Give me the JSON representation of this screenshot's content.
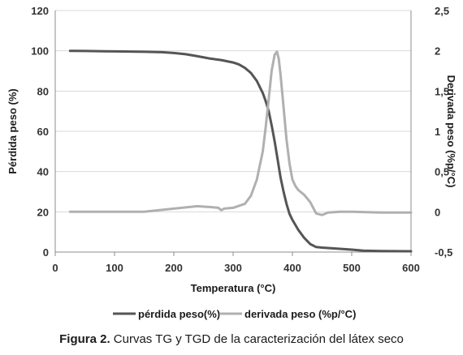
{
  "chart_data": {
    "type": "line",
    "xlabel": "Temperatura (°C)",
    "ylabel_left": "Pérdida peso (%)",
    "ylabel_right": "Derivada peso (%p/°C)",
    "xlim": [
      0,
      600
    ],
    "ylim_left": [
      0,
      120
    ],
    "ylim_right": [
      -0.5,
      2.5
    ],
    "xticks": [
      "0",
      "100",
      "200",
      "300",
      "400",
      "500",
      "600"
    ],
    "yticks_left": [
      "0",
      "20",
      "40",
      "60",
      "80",
      "100",
      "120"
    ],
    "yticks_right": [
      "-0,5",
      "0",
      "0,5",
      "1",
      "1,5",
      "2",
      "2,5"
    ],
    "grid": true,
    "legend_position": "bottom",
    "colors": {
      "perdida": "#555555",
      "derivada": "#b0b0b0",
      "grid": "#d9d9d9",
      "axis": "#8c8c8c"
    },
    "series": [
      {
        "name": "pérdida peso(%)",
        "axis": "left",
        "x": [
          25,
          50,
          100,
          150,
          180,
          200,
          220,
          240,
          260,
          280,
          300,
          310,
          320,
          330,
          340,
          350,
          355,
          360,
          365,
          370,
          375,
          380,
          385,
          390,
          395,
          400,
          410,
          420,
          430,
          440,
          450,
          470,
          500,
          520,
          550,
          600
        ],
        "y": [
          100,
          99.9,
          99.7,
          99.5,
          99.3,
          98.9,
          98.3,
          97.3,
          96.2,
          95.4,
          94.2,
          93.2,
          91.5,
          89,
          85,
          79,
          75,
          70,
          63,
          55,
          46,
          37,
          30,
          24,
          19,
          16,
          11,
          7,
          4,
          2.5,
          2.2,
          1.8,
          1.2,
          0.7,
          0.5,
          0.4
        ]
      },
      {
        "name": "derivada peso (%p/°C)",
        "axis": "right",
        "x": [
          25,
          100,
          150,
          200,
          240,
          260,
          275,
          280,
          285,
          300,
          320,
          330,
          340,
          350,
          355,
          360,
          365,
          370,
          374,
          377,
          380,
          385,
          390,
          395,
          400,
          405,
          410,
          420,
          430,
          440,
          445,
          450,
          460,
          480,
          500,
          550,
          600
        ],
        "y": [
          0.0,
          0.0,
          0.0,
          0.04,
          0.07,
          0.06,
          0.05,
          0.02,
          0.04,
          0.05,
          0.1,
          0.2,
          0.4,
          0.75,
          1.05,
          1.4,
          1.75,
          1.95,
          1.99,
          1.9,
          1.7,
          1.3,
          0.9,
          0.6,
          0.4,
          0.32,
          0.27,
          0.21,
          0.12,
          -0.02,
          -0.03,
          -0.04,
          -0.01,
          0.0,
          0.0,
          -0.01,
          -0.01
        ]
      }
    ]
  },
  "caption": {
    "label": "Figura 2.",
    "text": " Curvas TG y TGD de la caracterización del látex seco"
  }
}
